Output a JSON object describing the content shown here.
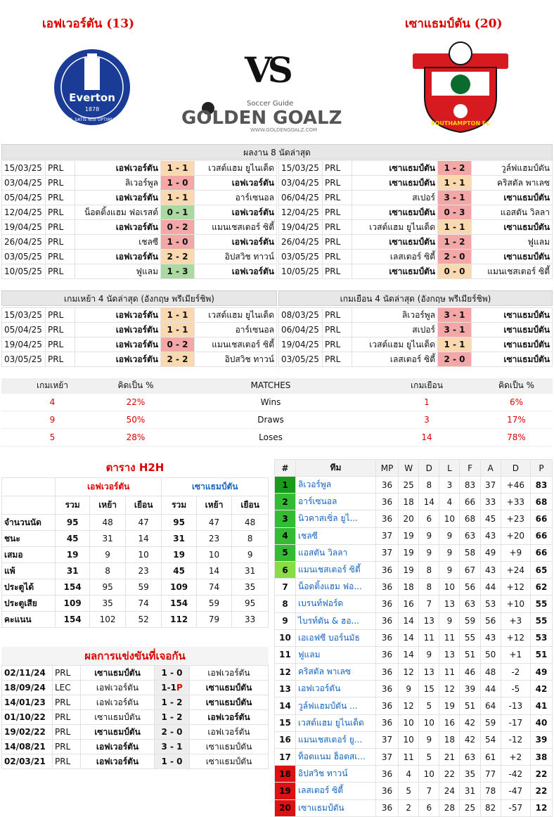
{
  "teams": {
    "home": "เอฟเวอร์ตัน (13)",
    "away": "เซาแธมป์ตัน (20)"
  },
  "logos": {
    "home_word": "Everton",
    "home_year": "1878",
    "home_motto": "NIL SATIS NISI OPTIMUM",
    "away_word": "SOUTHAMPTON FC",
    "vs": "VS",
    "brand_top": "Soccer Guide",
    "brand": "GOLDEN GOALZ",
    "brand_url": "WWW.GOLDENGOALZ.COM"
  },
  "last8": {
    "title": "ผลงาน 8 นัดล่าสุด",
    "home": [
      [
        "15/03/25",
        "PRL",
        "เอฟเวอร์ตัน",
        "1 - 1",
        "เวสต์แฮม ยูไนเต็ด",
        "d",
        1
      ],
      [
        "03/04/25",
        "PRL",
        "ลิเวอร์พูล",
        "1 - 0",
        "เอฟเวอร์ตัน",
        "l",
        2
      ],
      [
        "05/04/25",
        "PRL",
        "เอฟเวอร์ตัน",
        "1 - 1",
        "อาร์เซนอล",
        "d",
        1
      ],
      [
        "12/04/25",
        "PRL",
        "น็อตติ้งแฮม ฟอเรสต์",
        "0 - 1",
        "เอฟเวอร์ตัน",
        "w",
        2
      ],
      [
        "19/04/25",
        "PRL",
        "เอฟเวอร์ตัน",
        "0 - 2",
        "แมนเชสเตอร์ ซิตี้",
        "l",
        1
      ],
      [
        "26/04/25",
        "PRL",
        "เชลซี",
        "1 - 0",
        "เอฟเวอร์ตัน",
        "l",
        2
      ],
      [
        "03/05/25",
        "PRL",
        "เอฟเวอร์ตัน",
        "2 - 2",
        "อิปสวิช ทาวน์",
        "d",
        1
      ],
      [
        "10/05/25",
        "PRL",
        "ฟูแลม",
        "1 - 3",
        "เอฟเวอร์ตัน",
        "w",
        2
      ]
    ],
    "away": [
      [
        "15/03/25",
        "PRL",
        "เซาแธมป์ตัน",
        "1 - 2",
        "วูล์ฟแฮมป์ตัน",
        "l",
        1
      ],
      [
        "03/04/25",
        "PRL",
        "เซาแธมป์ตัน",
        "1 - 1",
        "คริสตัล พาเลซ",
        "d",
        1
      ],
      [
        "06/04/25",
        "PRL",
        "สเปอร์",
        "3 - 1",
        "เซาแธมป์ตัน",
        "l",
        2
      ],
      [
        "12/04/25",
        "PRL",
        "เซาแธมป์ตัน",
        "0 - 3",
        "แอสตัน วิลลา",
        "l",
        1
      ],
      [
        "19/04/25",
        "PRL",
        "เวสต์แฮม ยูไนเต็ด",
        "1 - 1",
        "เซาแธมป์ตัน",
        "d",
        2
      ],
      [
        "26/04/25",
        "PRL",
        "เซาแธมป์ตัน",
        "1 - 2",
        "ฟูแลม",
        "l",
        1
      ],
      [
        "03/05/25",
        "PRL",
        "เลสเตอร์ ซิตี้",
        "2 - 0",
        "เซาแธมป์ตัน",
        "l",
        2
      ],
      [
        "10/05/25",
        "PRL",
        "เซาแธมป์ตัน",
        "0 - 0",
        "แมนเชสเตอร์ ซิตี้",
        "d",
        1
      ]
    ]
  },
  "last4": {
    "home_title": "เกมเหย้า 4 นัดล่าสุด (อังกฤษ พรีเมียร์ชิพ)",
    "away_title": "เกมเยือน 4 นัดล่าสุด (อังกฤษ พรีเมียร์ชิพ)",
    "home": [
      [
        "15/03/25",
        "PRL",
        "เอฟเวอร์ตัน",
        "1 - 1",
        "เวสต์แฮม ยูไนเต็ด",
        "d",
        1
      ],
      [
        "05/04/25",
        "PRL",
        "เอฟเวอร์ตัน",
        "1 - 1",
        "อาร์เซนอล",
        "d",
        1
      ],
      [
        "19/04/25",
        "PRL",
        "เอฟเวอร์ตัน",
        "0 - 2",
        "แมนเชสเตอร์ ซิตี้",
        "l",
        1
      ],
      [
        "03/05/25",
        "PRL",
        "เอฟเวอร์ตัน",
        "2 - 2",
        "อิปสวิช ทาวน์",
        "d",
        1
      ]
    ],
    "away": [
      [
        "08/03/25",
        "PRL",
        "ลิเวอร์พูล",
        "3 - 1",
        "เซาแธมป์ตัน",
        "l",
        2
      ],
      [
        "06/04/25",
        "PRL",
        "สเปอร์",
        "3 - 1",
        "เซาแธมป์ตัน",
        "l",
        2
      ],
      [
        "19/04/25",
        "PRL",
        "เวสต์แฮม ยูไนเต็ด",
        "1 - 1",
        "เซาแธมป์ตัน",
        "d",
        2
      ],
      [
        "03/05/25",
        "PRL",
        "เลสเตอร์ ซิตี้",
        "2 - 0",
        "เซาแธมป์ตัน",
        "l",
        2
      ]
    ]
  },
  "matches": {
    "h1": "เกมเหย้า",
    "h2": "คิดเป็น  %",
    "h3": "MATCHES",
    "h4": "เกมเยือน",
    "h5": "คิดเป็น  %",
    "rows": [
      [
        "4",
        "22%",
        "Wins",
        "1",
        "6%"
      ],
      [
        "9",
        "50%",
        "Draws",
        "3",
        "17%"
      ],
      [
        "5",
        "28%",
        "Loses",
        "14",
        "78%"
      ]
    ]
  },
  "h2h": {
    "title": "ตาราง H2H",
    "home": "เอฟเวอร์ตัน",
    "away": "เซาแธมป์ตัน",
    "cols": [
      "รวม",
      "เหย้า",
      "เยือน",
      "รวม",
      "เหย้า",
      "เยือน"
    ],
    "rows": [
      [
        "จำนวนนัด",
        "95",
        "48",
        "47",
        "95",
        "47",
        "48"
      ],
      [
        "ชนะ",
        "45",
        "31",
        "14",
        "31",
        "23",
        "8"
      ],
      [
        "เสมอ",
        "19",
        "9",
        "10",
        "19",
        "10",
        "9"
      ],
      [
        "แพ้",
        "31",
        "8",
        "23",
        "45",
        "14",
        "31"
      ],
      [
        "ประตูได้",
        "154",
        "95",
        "59",
        "109",
        "74",
        "35"
      ],
      [
        "ประตูเสีย",
        "109",
        "35",
        "74",
        "154",
        "59",
        "95"
      ],
      [
        "คะแนน",
        "154",
        "102",
        "52",
        "112",
        "79",
        "33"
      ]
    ]
  },
  "results": {
    "title": "ผลการแข่งขันที่เจอกัน",
    "rows": [
      [
        "02/11/24",
        "PRL",
        "เซาแธมป์ตัน",
        "1 - 0",
        "เอฟเวอร์ตัน",
        1,
        ""
      ],
      [
        "18/09/24",
        "LEC",
        "เอฟเวอร์ตัน",
        "1-1",
        "เซาแธมป์ตัน",
        2,
        "P"
      ],
      [
        "14/01/23",
        "PRL",
        "เอฟเวอร์ตัน",
        "1 - 2",
        "เซาแธมป์ตัน",
        2,
        ""
      ],
      [
        "01/10/22",
        "PRL",
        "เซาแธมป์ตัน",
        "1 - 2",
        "เอฟเวอร์ตัน",
        2,
        ""
      ],
      [
        "19/02/22",
        "PRL",
        "เซาแธมป์ตัน",
        "2 - 0",
        "เอฟเวอร์ตัน",
        1,
        ""
      ],
      [
        "14/08/21",
        "PRL",
        "เอฟเวอร์ตัน",
        "3 - 1",
        "เซาแธมป์ตัน",
        1,
        ""
      ],
      [
        "02/03/21",
        "PRL",
        "เอฟเวอร์ตัน",
        "1 - 0",
        "เซาแธมป์ตัน",
        1,
        ""
      ]
    ]
  },
  "standings": {
    "cols": [
      "#",
      "ทีม",
      "MP",
      "W",
      "D",
      "L",
      "F",
      "A",
      "D",
      "P"
    ],
    "rows": [
      [
        "1",
        "ลิเวอร์พูล",
        "36",
        "25",
        "8",
        "3",
        "83",
        "37",
        "+46",
        "83",
        "#1a9a1a"
      ],
      [
        "2",
        "อาร์เซนอล",
        "36",
        "18",
        "14",
        "4",
        "66",
        "33",
        "+33",
        "68",
        "#33bb33"
      ],
      [
        "3",
        "นิวคาสเซิ่ล ยูไ...",
        "36",
        "20",
        "6",
        "10",
        "68",
        "45",
        "+23",
        "66",
        "#33bb33"
      ],
      [
        "4",
        "เชลซี",
        "37",
        "19",
        "9",
        "9",
        "63",
        "43",
        "+20",
        "66",
        "#33bb33"
      ],
      [
        "5",
        "แอสตัน วิลลา",
        "37",
        "19",
        "9",
        "9",
        "58",
        "49",
        "+9",
        "66",
        "#33bb33"
      ],
      [
        "6",
        "แมนเชสเตอร์ ซิตี้",
        "36",
        "19",
        "8",
        "9",
        "67",
        "43",
        "+24",
        "65",
        "#88dd44"
      ],
      [
        "7",
        "น็อตติ้งแฮม ฟอ...",
        "36",
        "18",
        "8",
        "10",
        "56",
        "44",
        "+12",
        "62",
        ""
      ],
      [
        "8",
        "เบรนท์ฟอร์ด",
        "36",
        "16",
        "7",
        "13",
        "63",
        "53",
        "+10",
        "55",
        ""
      ],
      [
        "9",
        "ไบรท์ตัน & ฮอ...",
        "36",
        "14",
        "13",
        "9",
        "59",
        "56",
        "+3",
        "55",
        ""
      ],
      [
        "10",
        "เอเอฟซี บอร์นมัธ",
        "36",
        "14",
        "11",
        "11",
        "55",
        "43",
        "+12",
        "53",
        ""
      ],
      [
        "11",
        "ฟูแลม",
        "36",
        "14",
        "9",
        "13",
        "51",
        "50",
        "+1",
        "51",
        ""
      ],
      [
        "12",
        "คริสตัล พาเลซ",
        "36",
        "12",
        "13",
        "11",
        "46",
        "48",
        "-2",
        "49",
        ""
      ],
      [
        "13",
        "เอฟเวอร์ตัน",
        "36",
        "9",
        "15",
        "12",
        "39",
        "44",
        "-5",
        "42",
        ""
      ],
      [
        "14",
        "วูล์ฟแฮมป์ตัน ...",
        "36",
        "12",
        "5",
        "19",
        "51",
        "64",
        "-13",
        "41",
        ""
      ],
      [
        "15",
        "เวสต์แฮม ยูไนเต็ด",
        "36",
        "10",
        "10",
        "16",
        "42",
        "59",
        "-17",
        "40",
        ""
      ],
      [
        "16",
        "แมนเชสเตอร์ ยู...",
        "37",
        "10",
        "9",
        "18",
        "42",
        "54",
        "-12",
        "39",
        ""
      ],
      [
        "17",
        "ท็อตแนม ฮ็อตสเ...",
        "37",
        "11",
        "5",
        "21",
        "63",
        "61",
        "+2",
        "38",
        ""
      ],
      [
        "18",
        "อิปสวิช ทาวน์",
        "36",
        "4",
        "10",
        "22",
        "35",
        "77",
        "-42",
        "22",
        "#dd1111"
      ],
      [
        "19",
        "เลสเตอร์ ซิตี้",
        "36",
        "5",
        "7",
        "24",
        "31",
        "78",
        "-47",
        "22",
        "#dd1111"
      ],
      [
        "20",
        "เซาแธมป์ตัน",
        "36",
        "2",
        "6",
        "28",
        "25",
        "82",
        "-57",
        "12",
        "#dd1111"
      ]
    ]
  }
}
